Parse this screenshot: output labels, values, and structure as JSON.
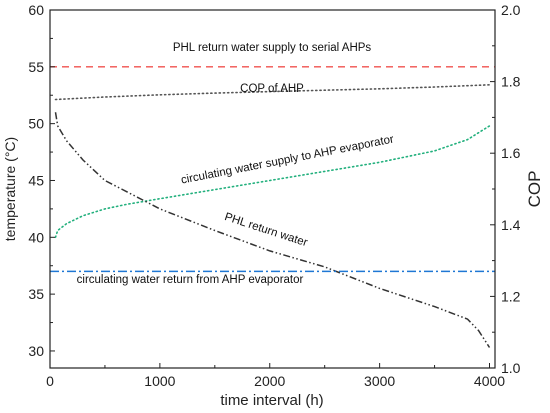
{
  "chart_data": {
    "type": "line",
    "xlabel": "time interval (h)",
    "ylabel": "temperature (°C)",
    "y2label": "COP",
    "xlim": [
      0,
      4050
    ],
    "ylim": [
      28.5,
      60
    ],
    "y2lim": [
      1.0,
      2.0
    ],
    "xticks": [
      0,
      1000,
      2000,
      3000,
      4000
    ],
    "yticks": [
      30,
      35,
      40,
      45,
      50,
      55,
      60
    ],
    "y2ticks": [
      1.0,
      1.2,
      1.4,
      1.6,
      1.8,
      2.0
    ],
    "grid": false,
    "colors": {
      "phl_supply": "#f0524f",
      "cop": "#555555",
      "circ_supply": "#22b07d",
      "phl_return": "#333333",
      "circ_return": "#1f77d4"
    },
    "annotations": [
      {
        "text": "PHL return water supply to serial AHPs",
        "series": "phl_supply"
      },
      {
        "text": "COP of AHP",
        "series": "cop"
      },
      {
        "text": "circulating water supply to AHP evaporator",
        "series": "circ_supply"
      },
      {
        "text": "PHL return water",
        "series": "phl_return"
      },
      {
        "text": "circulating water return from AHP evaporator",
        "series": "circ_return"
      }
    ],
    "series": [
      {
        "key": "phl_supply",
        "axis": "left",
        "style": "dashed",
        "x": [
          0,
          4050
        ],
        "y": [
          55.0,
          55.0
        ]
      },
      {
        "key": "cop",
        "axis": "right",
        "style": "dotted",
        "x": [
          50,
          500,
          1000,
          1500,
          2000,
          2500,
          3000,
          3500,
          4000
        ],
        "y": [
          1.75,
          1.757,
          1.763,
          1.768,
          1.772,
          1.776,
          1.78,
          1.785,
          1.791
        ]
      },
      {
        "key": "circ_supply",
        "axis": "left",
        "style": "dotted",
        "x": [
          50,
          70,
          150,
          300,
          500,
          700,
          1000,
          1500,
          2000,
          2500,
          3000,
          3500,
          3800,
          4000
        ],
        "y": [
          40.0,
          40.6,
          41.2,
          41.9,
          42.5,
          42.9,
          43.4,
          44.2,
          45.0,
          45.8,
          46.6,
          47.6,
          48.6,
          49.8
        ]
      },
      {
        "key": "phl_return",
        "axis": "left",
        "style": "dashdotdot",
        "x": [
          50,
          70,
          150,
          300,
          500,
          700,
          1000,
          1500,
          2000,
          2500,
          3000,
          3500,
          3800,
          3900,
          4000
        ],
        "y": [
          51.0,
          49.8,
          48.5,
          46.8,
          45.0,
          44.0,
          42.5,
          40.6,
          38.8,
          37.4,
          35.5,
          33.9,
          32.8,
          31.8,
          30.3
        ]
      },
      {
        "key": "circ_return",
        "axis": "left",
        "style": "dashdot",
        "x": [
          0,
          4050
        ],
        "y": [
          37.0,
          37.0
        ]
      }
    ]
  }
}
